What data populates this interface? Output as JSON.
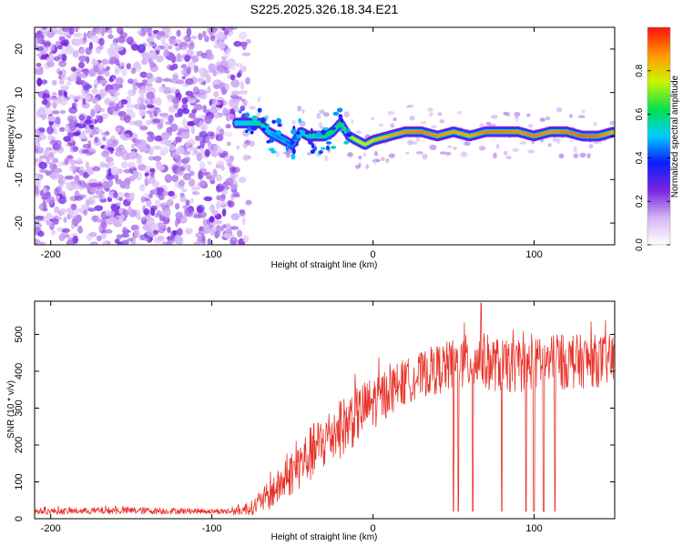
{
  "title": "S225.2025.326.18.34.E21",
  "chart_data": [
    {
      "type": "heatmap",
      "xlabel": "Height of straight line (km)",
      "ylabel": "Frequency (Hz)",
      "xlim": [
        -210,
        150
      ],
      "ylim": [
        -25,
        25
      ],
      "xticks": [
        -200,
        -100,
        0,
        100
      ],
      "yticks": [
        -20,
        -10,
        0,
        10,
        20
      ],
      "colorbar": {
        "label": "Normalized spectral amplitude",
        "range": [
          0,
          1
        ],
        "ticks": [
          0.0,
          0.2,
          0.4,
          0.6,
          0.8
        ],
        "stops": [
          {
            "v": 0.0,
            "color": "#ffffff"
          },
          {
            "v": 0.12,
            "color": "#d6b8f5"
          },
          {
            "v": 0.25,
            "color": "#7a22e0"
          },
          {
            "v": 0.38,
            "color": "#0a1fff"
          },
          {
            "v": 0.5,
            "color": "#00ccff"
          },
          {
            "v": 0.62,
            "color": "#00e050"
          },
          {
            "v": 0.75,
            "color": "#ccf500"
          },
          {
            "v": 0.87,
            "color": "#ff9900"
          },
          {
            "v": 1.0,
            "color": "#ff1010"
          }
        ]
      },
      "noise_region_x": [
        -210,
        -85
      ],
      "ridge": {
        "x": [
          -85,
          -75,
          -70,
          -65,
          -60,
          -55,
          -50,
          -45,
          -40,
          -35,
          -30,
          -25,
          -20,
          -15,
          -10,
          -5,
          0,
          10,
          20,
          30,
          40,
          50,
          60,
          70,
          80,
          90,
          100,
          110,
          120,
          130,
          140,
          150
        ],
        "freq": [
          3,
          3,
          3,
          1,
          0,
          -1,
          -2,
          1,
          0,
          0,
          0,
          1,
          3,
          0,
          -1,
          -2,
          -1,
          0,
          1,
          1,
          0,
          1,
          0,
          1,
          1,
          1,
          0,
          1,
          1,
          0,
          0,
          1
        ],
        "amplitude": [
          0.5,
          0.55,
          0.6,
          0.5,
          0.45,
          0.45,
          0.4,
          0.5,
          0.55,
          0.6,
          0.6,
          0.62,
          0.6,
          0.7,
          0.75,
          0.78,
          0.8,
          0.85,
          0.88,
          0.9,
          0.88,
          0.86,
          0.85,
          0.9,
          0.9,
          0.88,
          0.9,
          0.88,
          0.9,
          0.92,
          0.9,
          0.85
        ]
      }
    },
    {
      "type": "line",
      "xlabel": "Height of straight line (km)",
      "ylabel": "SNR (10 * v/v)",
      "xlim": [
        -210,
        150
      ],
      "ylim": [
        0,
        590
      ],
      "xticks": [
        -200,
        -100,
        0,
        100
      ],
      "yticks": [
        0,
        100,
        200,
        300,
        400,
        500
      ],
      "color": "#e8332a",
      "envelope": {
        "x": [
          -210,
          -150,
          -100,
          -85,
          -75,
          -65,
          -55,
          -45,
          -35,
          -25,
          -15,
          -5,
          5,
          15,
          25,
          35,
          45,
          55,
          65,
          75,
          85,
          100,
          120,
          150
        ],
        "mean": [
          20,
          22,
          20,
          20,
          30,
          60,
          100,
          150,
          190,
          230,
          260,
          300,
          330,
          360,
          380,
          400,
          410,
          420,
          430,
          420,
          410,
          420,
          425,
          430
        ],
        "spread": [
          8,
          10,
          7,
          10,
          20,
          40,
          50,
          70,
          80,
          80,
          80,
          75,
          70,
          65,
          60,
          65,
          70,
          75,
          80,
          75,
          70,
          70,
          75,
          70
        ]
      },
      "dropouts": [
        {
          "x": 50,
          "value": 20
        },
        {
          "x": 53,
          "value": 20
        },
        {
          "x": 62,
          "value": 20
        },
        {
          "x": 80,
          "value": 20
        },
        {
          "x": 95,
          "value": 20
        },
        {
          "x": 100,
          "value": 20
        },
        {
          "x": 106,
          "value": 20
        },
        {
          "x": 113,
          "value": 20
        }
      ],
      "peak": {
        "x": 67,
        "value": 585
      }
    }
  ]
}
